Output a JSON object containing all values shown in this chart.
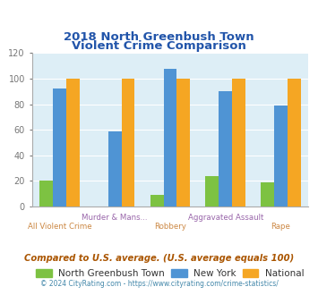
{
  "title_line1": "2018 North Greenbush Town",
  "title_line2": "Violent Crime Comparison",
  "categories": [
    "All Violent Crime",
    "Murder & Mans...",
    "Robbery",
    "Aggravated Assault",
    "Rape"
  ],
  "north_greenbush": [
    20,
    0,
    9,
    24,
    19
  ],
  "new_york": [
    92,
    59,
    108,
    90,
    79
  ],
  "national": [
    100,
    100,
    100,
    100,
    100
  ],
  "color_ng": "#7dc242",
  "color_ny": "#4f94d4",
  "color_nat": "#f5a623",
  "title_color": "#2255aa",
  "background_color": "#ddeef6",
  "ylim": [
    0,
    120
  ],
  "yticks": [
    0,
    20,
    40,
    60,
    80,
    100,
    120
  ],
  "legend_labels": [
    "North Greenbush Town",
    "New York",
    "National"
  ],
  "footnote1": "Compared to U.S. average. (U.S. average equals 100)",
  "footnote2": "© 2024 CityRating.com - https://www.cityrating.com/crime-statistics/",
  "footnote1_color": "#aa5500",
  "footnote2_color": "#4488aa",
  "tick_top_labels": [
    "",
    "Murder & Mans...",
    "",
    "Aggravated Assault",
    ""
  ],
  "tick_bot_labels": [
    "All Violent Crime",
    "",
    "Robbery",
    "",
    "Rape"
  ],
  "tick_top_color": "#9966aa",
  "tick_bot_color": "#cc8844"
}
